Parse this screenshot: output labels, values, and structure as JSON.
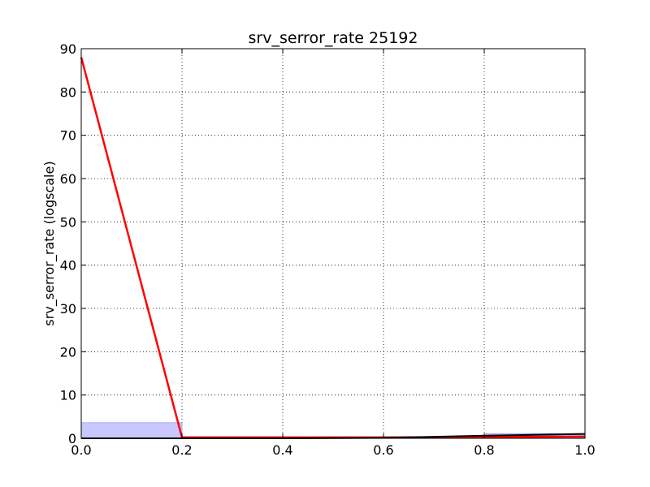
{
  "chart_data": {
    "type": "line",
    "title": "srv_serror_rate 25192",
    "xlabel": "",
    "ylabel": "srv_serror_rate (logscale)",
    "xlim": [
      0.0,
      1.0
    ],
    "ylim": [
      0,
      90
    ],
    "grid": true,
    "x_ticks": [
      "0.0",
      "0.2",
      "0.4",
      "0.6",
      "0.8",
      "1.0"
    ],
    "y_ticks": [
      "0",
      "10",
      "20",
      "30",
      "40",
      "50",
      "60",
      "70",
      "80",
      "90"
    ],
    "colors": {
      "red_line": "#ff0000",
      "black_line": "#000000",
      "bar_fill": "#c8c8ff",
      "bar_edge": "#8080ff"
    },
    "bars": [
      {
        "x0": 0.0,
        "x1": 0.2,
        "value": 3.6
      },
      {
        "x0": 0.8,
        "x1": 1.0,
        "value": 1.1
      }
    ],
    "series": [
      {
        "color": "red",
        "x": [
          0.0,
          0.2,
          0.4,
          0.6,
          0.8,
          1.0
        ],
        "values": [
          88.0,
          0.2,
          0.2,
          0.2,
          0.3,
          0.4
        ]
      },
      {
        "color": "black",
        "x": [
          0.0,
          0.2,
          0.4,
          0.6,
          0.8,
          1.0
        ],
        "values": [
          0.0,
          0.0,
          0.0,
          0.1,
          0.6,
          1.0
        ]
      }
    ]
  }
}
